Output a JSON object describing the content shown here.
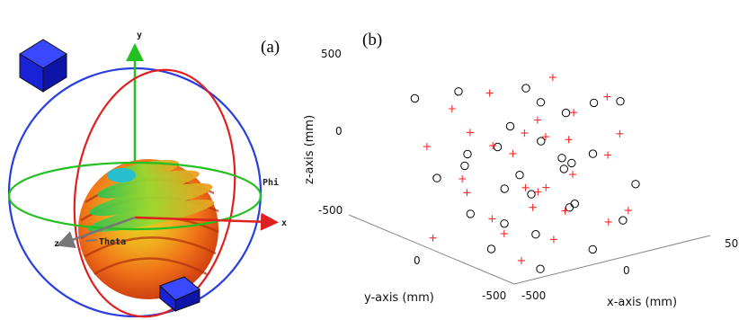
{
  "panel_a": {
    "label": "(a)",
    "axis_y": "y",
    "axis_x": "x",
    "axis_z": "z",
    "phi_label": "Phi",
    "theta_label": "Theta",
    "colors": {
      "blue_ring": "#2a3fe0",
      "red_ring": "#e02020",
      "green_ring": "#22c020",
      "cube": "#1a22d8"
    }
  },
  "panel_b": {
    "label": "(b)",
    "colors": {
      "circle": "#000000",
      "plus": "#ff2a2a"
    }
  },
  "chart_data": {
    "type": "scatter",
    "title": "",
    "xlabel": "x-axis (mm)",
    "ylabel": "y-axis (mm)",
    "zlabel": "z-axis (mm)",
    "xlim": [
      -500,
      500
    ],
    "ylim": [
      -500,
      500
    ],
    "zlim": [
      -500,
      500
    ],
    "x_ticks": [
      "-500",
      "0",
      "50"
    ],
    "y_ticks": [
      "0",
      "-500"
    ],
    "z_ticks": [
      "500",
      "0",
      "-500"
    ],
    "grid": false,
    "series": [
      {
        "marker": "circle",
        "color": "#000000",
        "points": [
          [
            -420,
            300,
            480
          ],
          [
            -300,
            -200,
            300
          ],
          [
            -150,
            350,
            420
          ],
          [
            0,
            -100,
            460
          ],
          [
            150,
            250,
            380
          ],
          [
            300,
            -300,
            440
          ],
          [
            420,
            100,
            250
          ],
          [
            -380,
            -50,
            150
          ],
          [
            -200,
            200,
            80
          ],
          [
            -50,
            -350,
            200
          ],
          [
            100,
            50,
            120
          ],
          [
            250,
            -150,
            60
          ],
          [
            400,
            300,
            120
          ],
          [
            -300,
            300,
            -80
          ],
          [
            -150,
            -250,
            -40
          ],
          [
            50,
            150,
            -120
          ],
          [
            200,
            -50,
            -20
          ],
          [
            350,
            -350,
            -100
          ],
          [
            -400,
            -300,
            -300
          ],
          [
            -250,
            100,
            -260
          ],
          [
            -80,
            -180,
            -350
          ],
          [
            80,
            320,
            -280
          ],
          [
            250,
            0,
            -320
          ],
          [
            380,
            -200,
            -400
          ],
          [
            -200,
            -400,
            -460
          ],
          [
            0,
            200,
            -440
          ],
          [
            150,
            -300,
            -480
          ],
          [
            320,
            150,
            -420
          ],
          [
            -100,
            0,
            300
          ],
          [
            60,
            -200,
            40
          ]
        ]
      },
      {
        "marker": "plus",
        "color": "#ff2a2a",
        "points": [
          [
            -350,
            100,
            460
          ],
          [
            -220,
            -300,
            400
          ],
          [
            -80,
            200,
            440
          ],
          [
            80,
            -250,
            420
          ],
          [
            230,
            150,
            460
          ],
          [
            360,
            -100,
            380
          ],
          [
            -420,
            200,
            200
          ],
          [
            -260,
            -100,
            260
          ],
          [
            -120,
            300,
            160
          ],
          [
            20,
            -300,
            280
          ],
          [
            180,
            200,
            180
          ],
          [
            330,
            -250,
            200
          ],
          [
            -360,
            0,
            40
          ],
          [
            -180,
            -350,
            20
          ],
          [
            -20,
            100,
            60
          ],
          [
            140,
            -150,
            -40
          ],
          [
            290,
            300,
            0
          ],
          [
            430,
            0,
            -60
          ],
          [
            -330,
            -200,
            -160
          ],
          [
            -170,
            250,
            -200
          ],
          [
            0,
            -300,
            -180
          ],
          [
            160,
            100,
            -220
          ],
          [
            310,
            -350,
            -260
          ],
          [
            -420,
            150,
            -380
          ],
          [
            -270,
            -350,
            -400
          ],
          [
            -100,
            50,
            -420
          ],
          [
            70,
            -100,
            -460
          ],
          [
            220,
            300,
            -440
          ],
          [
            400,
            -50,
            -470
          ],
          [
            -50,
            -50,
            -100
          ]
        ]
      }
    ]
  }
}
